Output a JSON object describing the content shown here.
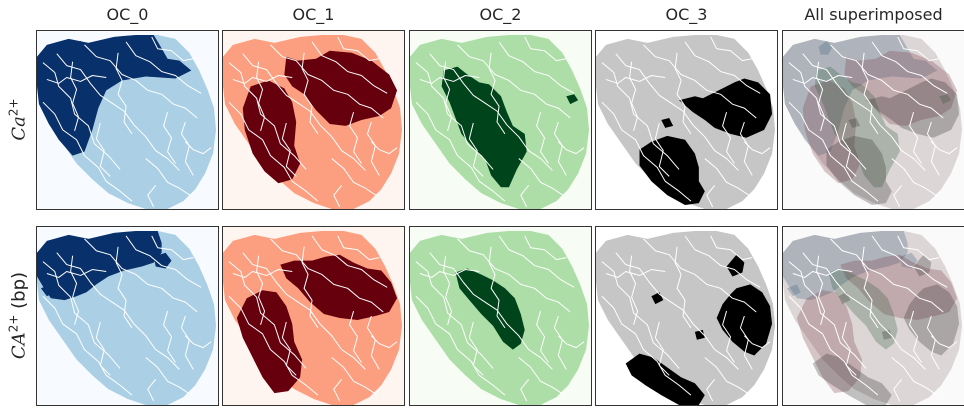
{
  "chart_data": {
    "type": "heatmap",
    "columns": [
      {
        "title": "OC_0",
        "cmap": "Blues",
        "high": "#08306b",
        "mid": "#abd0e6",
        "bg": "#f7fbff"
      },
      {
        "title": "OC_1",
        "cmap": "Reds",
        "high": "#67000d",
        "mid": "#fc9f81",
        "bg": "#fff5f0"
      },
      {
        "title": "OC_2",
        "cmap": "Greens",
        "high": "#00441b",
        "mid": "#addea7",
        "bg": "#f7fcf5"
      },
      {
        "title": "OC_3",
        "cmap": "Greys",
        "high": "#000000",
        "mid": "#c6c6c6",
        "bg": "#ffffff"
      },
      {
        "title": "All superimposed",
        "cmap": "blend",
        "high": "#6e6460",
        "mid": "#ddd6d6",
        "bg": "#fafafa"
      }
    ],
    "rows": [
      {
        "label_main": "Ca",
        "label_sup": "2+",
        "label_suffix": ""
      },
      {
        "label_main": "CA",
        "label_sup": "2+",
        "label_suffix": " (bp)"
      }
    ],
    "region_color": "#ffffff",
    "grid": false,
    "ticks": false
  }
}
